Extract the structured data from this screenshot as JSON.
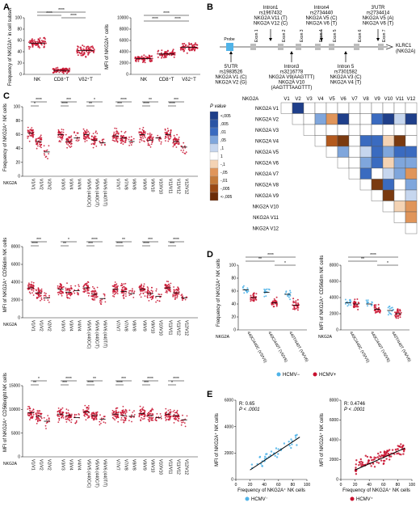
{
  "panels": {
    "A": "A",
    "B": "B",
    "C": "C",
    "D": "D",
    "E": "E"
  },
  "panel_a": {
    "left_ylabel": "Frequency of NKG2A⁺ in cell subset",
    "left_yticks": [
      "0",
      "20",
      "40",
      "60",
      "80",
      "100"
    ],
    "left_groups": [
      "NK",
      "CD8⁺T",
      "Vδ2⁺T"
    ],
    "left_sig": [
      "****",
      "****",
      "****"
    ],
    "right_ylabel": "MFI of NKG2A⁺ cells",
    "right_yticks": [
      "0",
      "2000",
      "4000",
      "6000",
      "8000",
      "10000"
    ],
    "right_groups": [
      "NK",
      "CD8⁺T",
      "Vδ2⁺T"
    ],
    "right_sig": [
      "****",
      "****",
      "****"
    ]
  },
  "panel_b": {
    "annotations_top": [
      {
        "lines": [
          "Intron1",
          "rs1967432",
          "NKG2A V11 (T)",
          "NKG2A V12 (C)"
        ]
      },
      {
        "lines": [
          "Intron4",
          "rs2734440",
          "NKG2A V5 (C)",
          "NKG2A V6 (T)"
        ]
      },
      {
        "lines": [
          "3'UTR",
          "rs2734414",
          "NKG2A V5 (A)",
          "NKG2A V6 (T)"
        ]
      }
    ],
    "annotations_bottom": [
      {
        "lines": [
          "5'UTR",
          "rs1983526",
          "NKG2A V1 (C)",
          "NKG2A V2 (G)"
        ]
      },
      {
        "lines": [
          "Intron3",
          "rs3216778",
          "NKG2A V9(AAGTTT)",
          "NKG2A V10",
          "(AAGTTTAAGTTT)"
        ]
      },
      {
        "lines": [
          "Intron 5",
          "rs7301582",
          "NKG2A V3 (C)",
          "NKG2A V4 (T)"
        ]
      }
    ],
    "probe": "Probe",
    "exons": [
      "Exon 1",
      "Exon 2",
      "Exon 3",
      "Exon 4",
      "Exon 5",
      "Exon 6",
      "Exon 7"
    ],
    "gene": "KLRC1 (NKG2A)",
    "matrix_cols": [
      "NKG2A",
      "V1",
      "V2",
      "V3",
      "V4",
      "V5",
      "V6",
      "V7",
      "V8",
      "V9",
      "V10",
      "V11",
      "V12"
    ],
    "matrix_rows": [
      "NKG2A V1",
      "NKG2A V2",
      "NKG2A V3",
      "NKG2A V4",
      "NKG2A V5",
      "NKG2A V6",
      "NKG2A V7",
      "NKG2A V8",
      "NKG2A V9",
      "NKG2A V10",
      "NKG2A V11",
      "NKG2A V12"
    ],
    "legend_title": "P value",
    "legend_ticks": [
      "<,005",
      ",005",
      ",01",
      ",05",
      ",1",
      "1",
      "-,1",
      "-,05",
      "-,01",
      "-,005",
      "<-,005"
    ]
  },
  "panel_c": {
    "y1": "Frequency of NKG2A⁺ NK cells",
    "y1ticks": [
      "0",
      "20",
      "40",
      "60",
      "80",
      "100"
    ],
    "y2": "MFI of NKG2A⁺ CD56dim NK cells",
    "y2ticks": [
      "0",
      "2000",
      "4000",
      "6000",
      "8000"
    ],
    "y3": "MFI of NKG2A⁺ CD56bright NK cells",
    "y3ticks": [
      "0",
      "5000",
      "10000",
      "15000"
    ],
    "xprefix": "NKG2A",
    "groups": [
      [
        "V1/V1",
        "V1/V2",
        "V2/V2"
      ],
      [
        "V3/V3",
        "V3/V4",
        "V4/V4"
      ],
      [
        "V5/V5 (440C/C)",
        "V5/V6 (440C/T)",
        "V6/V6 (440T/T)"
      ],
      [
        "V7/V7",
        "V7/V8",
        "V8/V8"
      ],
      [
        "V9/V9",
        "V9/V10",
        "V10/V10"
      ],
      [
        "V11/V11",
        "V11/V12",
        "V12/V12"
      ]
    ]
  },
  "panel_d": {
    "left_ylabel": "Frequency of NKG2A⁺ NK cells",
    "left_yticks": [
      "0",
      "20",
      "40",
      "60",
      "80",
      "100"
    ],
    "right_ylabel": "MFI of NKG2A⁺ CD56dim NK cells",
    "right_yticks": [
      "0",
      "2000",
      "4000",
      "6000",
      "8000"
    ],
    "xprefix": "NKG2A",
    "xlabels": [
      "440C/440C (V5/V5)",
      "440C/440T (V5/V6)",
      "440T/440T (V6/V6)"
    ],
    "legend": [
      {
        "label": "HCMV−",
        "color": "#4fb3e8"
      },
      {
        "label": "HCMV+",
        "color": "#c8102e"
      }
    ]
  },
  "panel_e": {
    "left": {
      "r": "R: 0.65",
      "p": "P < .0001",
      "xlabel": "Frequency of NKG2A⁺ NK cells",
      "ylabel": "MFI of NKG2A⁺ NK cells",
      "legend": "HCMV⁻",
      "xticks": [
        "0",
        "20",
        "40",
        "60",
        "80",
        "100"
      ],
      "yticks": [
        "0",
        "2000",
        "4000",
        "6000"
      ]
    },
    "right": {
      "r": "R: 0.4746",
      "p": "P < .0001",
      "xlabel": "Frequency of NKG2A⁺ NK cells",
      "ylabel": "MFI of NKG2A⁺ NK cells",
      "legend": "HCMV⁺",
      "xticks": [
        "0",
        "20",
        "40",
        "60",
        "80",
        "100"
      ],
      "yticks": [
        "0",
        "2000",
        "4000",
        "6000",
        "8000"
      ]
    }
  },
  "colors": {
    "red": "#c8102e",
    "blue": "#4fb3e8",
    "probe": "#4fb3e8",
    "exon": "#bdbdbd"
  }
}
